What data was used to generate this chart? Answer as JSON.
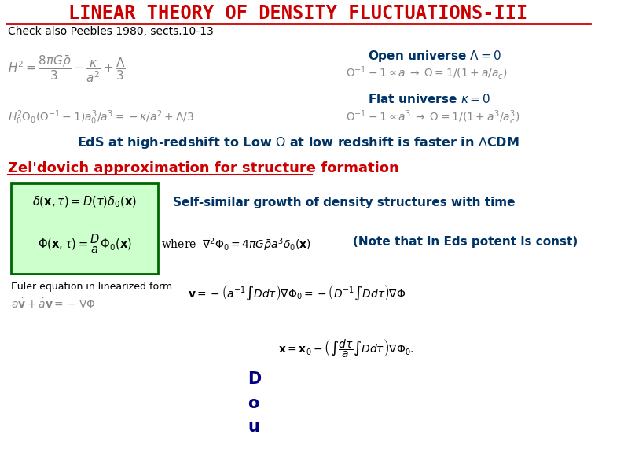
{
  "title": "LINEAR THEORY OF DENSITY FLUCTUATIONS-III",
  "subtitle": "Check also Peebles 1980, sects.10-13",
  "title_color": "#cc0000",
  "subtitle_color": "#000000",
  "bg_color": "#ffffff",
  "open_universe_label": "Open universe $\\Lambda=0$",
  "flat_universe_label": "Flat universe $\\kappa=0$",
  "eds_text": "EdS at high-redshift to Low $\\Omega$ at low redshift is faster in $\\Lambda$CDM",
  "zeldovich_label": "Zel'dovich approximation for structure formation",
  "self_similar_text": "Self-similar growth of density structures with time",
  "note_text": "(Note that in Eds potent is const)",
  "euler_label": "Euler equation in linearized form",
  "eq1_left": "$H^2 = \\dfrac{8\\pi G\\bar{\\rho}}{3} - \\dfrac{\\kappa}{a^2} + \\dfrac{\\Lambda}{3}$",
  "eq1_right_open": "$\\Omega^{-1} - 1 \\propto a \\;\\rightarrow\\; \\Omega = 1/(1+a/a_c)$",
  "eq1_right_flat": "$\\Omega^{-1} - 1 \\propto a^3 \\;\\rightarrow\\; \\Omega = 1/(1+a^3/a_c^3)$",
  "eq2_left": "$H_0^2\\Omega_0\\left(\\Omega^{-1}-1\\right)a_0^3/a^3 = -\\kappa/a^2 + \\Lambda/3$",
  "box_eq1": "$\\delta(\\mathbf{x},\\tau) = D(\\tau)\\delta_0(\\mathbf{x})$",
  "box_eq2": "$\\Phi(\\mathbf{x},\\tau) = \\dfrac{D}{a}\\Phi_0(\\mathbf{x})$",
  "where_eq": "where $\\;\\nabla^2\\Phi_0 = 4\\pi G\\bar{\\rho}a^3\\delta_0(\\mathbf{x})$",
  "euler_eq1": "$a\\dot{\\mathbf{v}} + \\dot{a}\\mathbf{v} = -\\nabla\\Phi$",
  "v_eq": "$\\mathbf{v} = -\\left(a^{-1}\\int Dd\\tau\\right)\\nabla\\Phi_0 = -\\left(D^{-1}\\int Dd\\tau\\right)\\nabla\\Phi$",
  "x_eq": "$\\mathbf{x} = \\mathbf{x}_0 - \\left(\\int\\dfrac{d\\tau}{a}\\int Dd\\tau\\right)\\nabla\\Phi_0.$",
  "box_fill": "#ccffcc",
  "box_edge": "#006600",
  "label_color_red": "#cc0000",
  "label_color_blue": "#000080",
  "label_color_dark": "#003366",
  "math_gray": "#888888",
  "dou_letters": [
    "D",
    "o",
    "u"
  ]
}
